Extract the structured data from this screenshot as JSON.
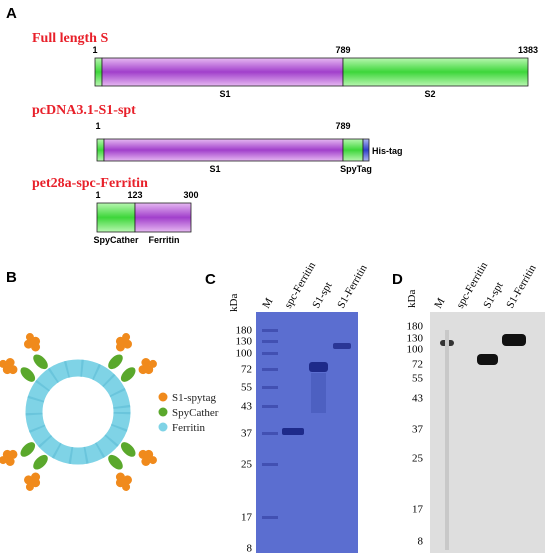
{
  "panel_a": {
    "label": "A",
    "constructs": [
      {
        "name": "Full length S",
        "positions": [
          1,
          789,
          1383
        ],
        "domains": [
          "S1",
          "S2"
        ]
      },
      {
        "name": "pcDNA3.1-S1-spt",
        "positions": [
          1,
          789
        ],
        "domains": [
          "S1",
          "SpyTag",
          "His-tag"
        ]
      },
      {
        "name": "pet28a-spc-Ferritin",
        "positions": [
          1,
          123,
          300
        ],
        "domains": [
          "SpyCather",
          "Ferritin"
        ]
      }
    ]
  },
  "panel_b": {
    "label": "B",
    "legend": [
      "S1-spytag",
      "SpyCather",
      "Ferritin"
    ]
  },
  "panel_c": {
    "label": "C",
    "unit": "kDa",
    "lanes": [
      "M",
      "spc-Ferritin",
      "S1-spt",
      "S1-Ferritin"
    ],
    "markers": [
      180,
      130,
      100,
      72,
      55,
      43,
      37,
      25,
      17,
      8
    ]
  },
  "panel_d": {
    "label": "D",
    "unit": "kDa",
    "lanes": [
      "M",
      "spc-Ferritin",
      "S1-spt",
      "S1-Ferritin"
    ],
    "markers": [
      180,
      130,
      100,
      72,
      55,
      43,
      37,
      25,
      17,
      8
    ]
  }
}
